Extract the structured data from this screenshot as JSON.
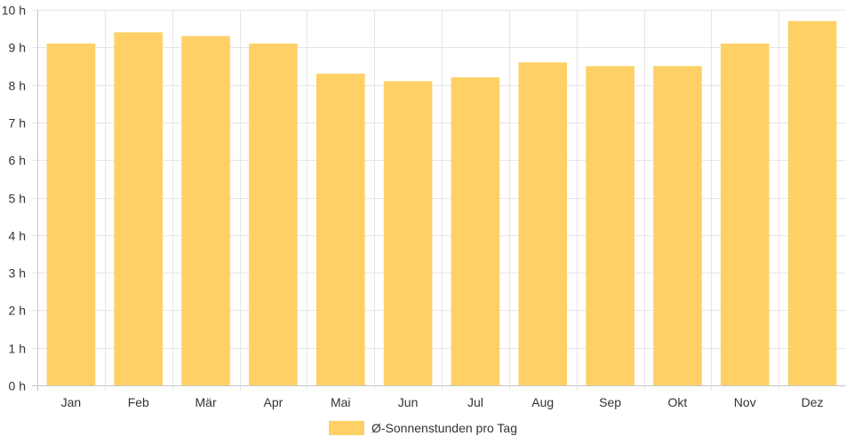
{
  "chart_data": {
    "type": "bar",
    "categories": [
      "Jan",
      "Feb",
      "Mär",
      "Apr",
      "Mai",
      "Jun",
      "Jul",
      "Aug",
      "Sep",
      "Okt",
      "Nov",
      "Dez"
    ],
    "series": [
      {
        "name": "Ø-Sonnenstunden pro Tag",
        "values": [
          9.1,
          9.4,
          9.3,
          9.1,
          8.3,
          8.1,
          8.2,
          8.6,
          8.5,
          8.5,
          9.1,
          9.7
        ],
        "color": "#fed066"
      }
    ],
    "y_ticks": [
      "0 h",
      "1 h",
      "2 h",
      "3 h",
      "4 h",
      "5 h",
      "6 h",
      "7 h",
      "8 h",
      "9 h",
      "10 h"
    ],
    "ylim": [
      0,
      10
    ],
    "grid": true,
    "legend_position": "bottom",
    "colors": {
      "grid": "#e6e6e6",
      "axis": "#c8c8c8",
      "text": "#333333"
    }
  }
}
